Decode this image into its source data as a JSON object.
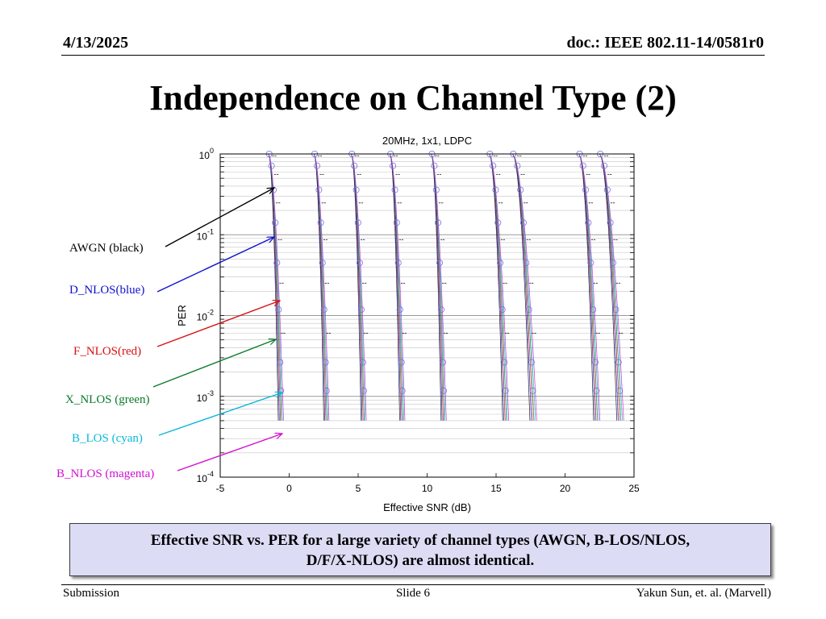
{
  "header": {
    "date": "4/13/2025",
    "doc": "doc.: IEEE 802.11-14/0581r0"
  },
  "slide_title": "Independence on Channel Type (2)",
  "annotations": [
    {
      "label": "AWGN (black)",
      "color": "#000000"
    },
    {
      "label": "D_NLOS(blue)",
      "color": "#1010d0"
    },
    {
      "label": "F_NLOS(red)",
      "color": "#d81010"
    },
    {
      "label": "X_NLOS (green)",
      "color": "#0a7a2a"
    },
    {
      "label": "B_LOS (cyan)",
      "color": "#08b8d8"
    },
    {
      "label": "B_NLOS (magenta)",
      "color": "#d010d0"
    }
  ],
  "chart_data": {
    "type": "line",
    "title": "20MHz, 1x1, LDPC",
    "xlabel": "Effective SNR (dB)",
    "ylabel": "PER",
    "x_range": [
      -5,
      25
    ],
    "y_range": [
      0.0001,
      1
    ],
    "y_scale": "log",
    "x_ticks": [
      "-5",
      "0",
      "5",
      "10",
      "15",
      "20",
      "25"
    ],
    "y_ticks": [
      {
        "base": "10",
        "exp": "0"
      },
      {
        "base": "10",
        "exp": "-1"
      },
      {
        "base": "10",
        "exp": "-2"
      },
      {
        "base": "10",
        "exp": "-3"
      },
      {
        "base": "10",
        "exp": "-4"
      }
    ],
    "grid": true,
    "curve_groups": [
      {
        "start_snr": -1.5,
        "end_snr": -0.6
      },
      {
        "start_snr": 1.8,
        "end_snr": 2.7
      },
      {
        "start_snr": 4.5,
        "end_snr": 5.4
      },
      {
        "start_snr": 7.3,
        "end_snr": 8.2
      },
      {
        "start_snr": 10.3,
        "end_snr": 11.2
      },
      {
        "start_snr": 14.5,
        "end_snr": 15.7
      },
      {
        "start_snr": 16.2,
        "end_snr": 17.7
      },
      {
        "start_snr": 21.0,
        "end_snr": 22.3
      },
      {
        "start_snr": 22.5,
        "end_snr": 24.0
      }
    ],
    "series_colors": {
      "AWGN": "#000000",
      "D_NLOS": "#1010d0",
      "F_NLOS": "#d81010",
      "X_NLOS": "#0a7a2a",
      "B_LOS": "#08b8d8",
      "B_NLOS": "#d010d0"
    }
  },
  "caption": {
    "line1": "Effective SNR vs. PER for a large variety of channel types (AWGN, B-LOS/NLOS,",
    "line2": "D/F/X-NLOS) are almost identical."
  },
  "footer": {
    "left": "Submission",
    "center": "Slide 6",
    "right": "Yakun Sun, et. al. (Marvell)"
  }
}
